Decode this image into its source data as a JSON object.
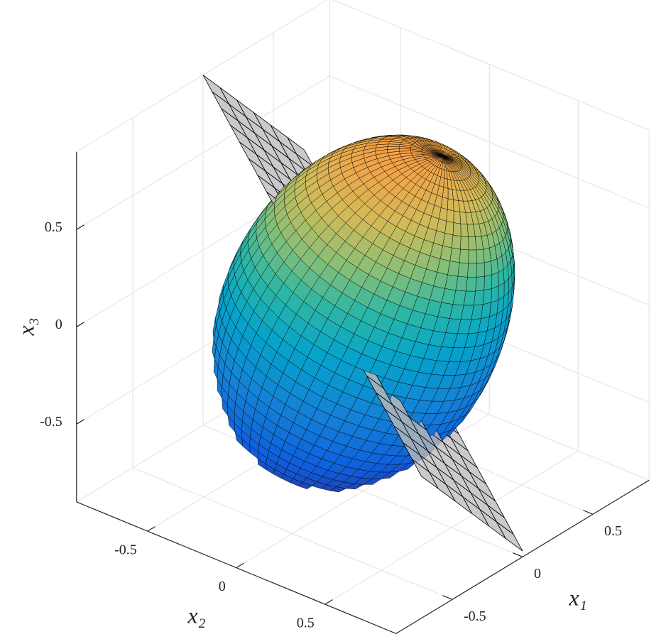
{
  "chart_data": {
    "type": "surface3d",
    "xlabel": "x₁",
    "ylabel": "x₂",
    "zlabel": "x₃",
    "xlim": [
      -0.9,
      0.9
    ],
    "ylim": [
      -0.9,
      0.9
    ],
    "zlim": [
      -0.9,
      0.9
    ],
    "xticks": [
      -0.5,
      0,
      0.5
    ],
    "yticks": [
      -0.5,
      0,
      0.5
    ],
    "zticks": [
      -0.5,
      0,
      0.5
    ],
    "grid": true,
    "colormap": "parula",
    "ellipsoid": {
      "center": [
        0,
        0,
        0
      ],
      "semi_axes": [
        0.62,
        0.62,
        0.9
      ],
      "axis_direction": [
        0.2,
        0.25,
        0.75
      ]
    },
    "plane": {
      "corners": [
        [
          0,
          -0.9,
          0.9
        ],
        [
          0.72,
          -0.9,
          0.2
        ],
        [
          0,
          0.9,
          -0.87
        ],
        [
          -0.72,
          0.9,
          -0.17
        ]
      ],
      "color": "#bdbdbd"
    }
  }
}
